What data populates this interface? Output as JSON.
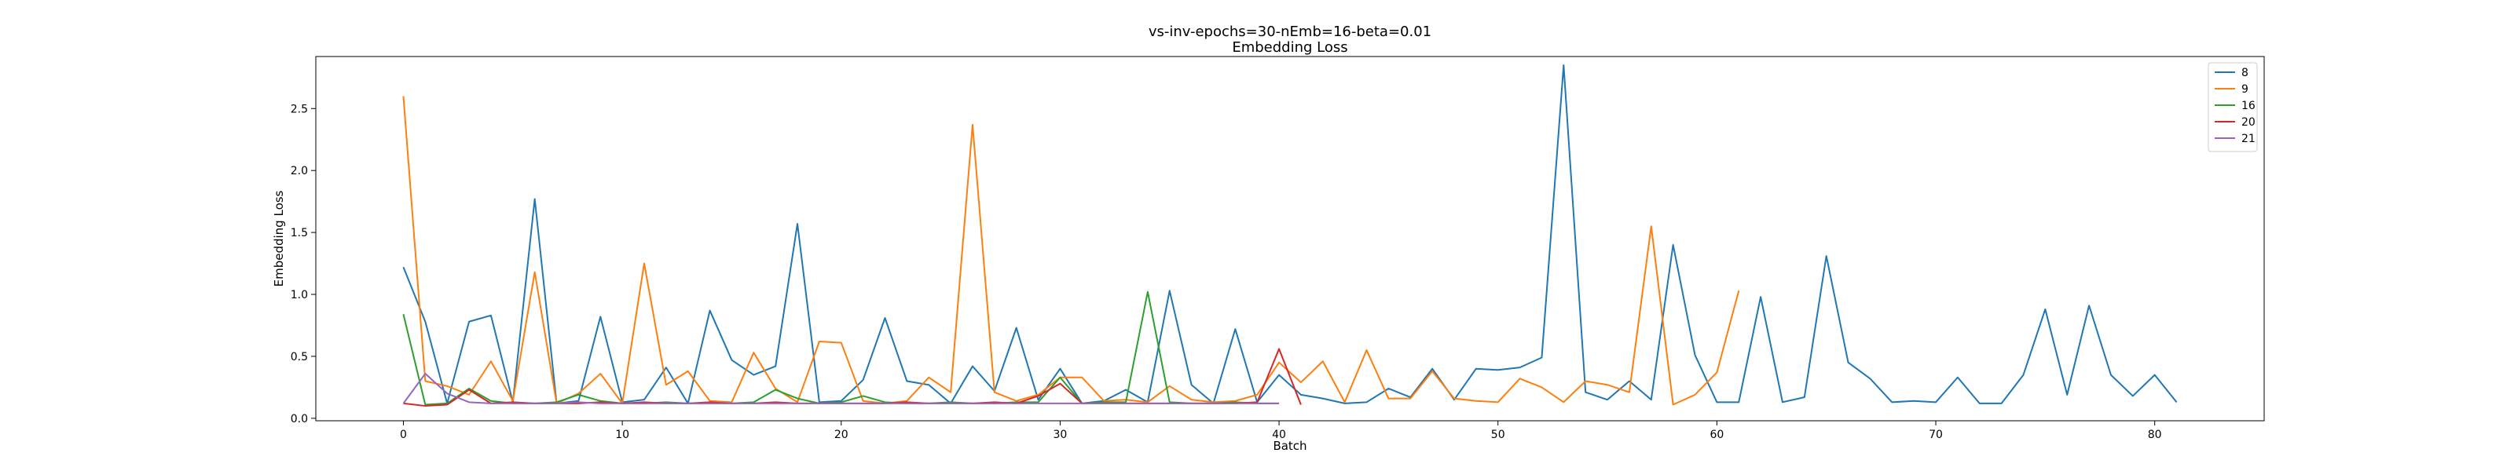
{
  "chart_data": {
    "type": "line",
    "title_lines": [
      "vs-inv-epochs=30-nEmb=16-beta=0.01",
      "Embedding Loss"
    ],
    "xlabel": "Batch",
    "ylabel": "Embedding Loss",
    "xlim": [
      -4,
      85
    ],
    "ylim": [
      -0.02,
      2.92
    ],
    "xticks": [
      0,
      10,
      20,
      30,
      40,
      50,
      60,
      70,
      80
    ],
    "yticks": [
      0.0,
      0.5,
      1.0,
      1.5,
      2.0,
      2.5
    ],
    "ytick_labels": [
      "0.0",
      "0.5",
      "1.0",
      "1.5",
      "2.0",
      "2.5"
    ],
    "grid": false,
    "legend_position": "top-right",
    "series": [
      {
        "name": "8",
        "color": "#1f77b4",
        "values": [
          1.22,
          0.78,
          0.12,
          0.78,
          0.83,
          0.13,
          1.77,
          0.12,
          0.14,
          0.82,
          0.13,
          0.15,
          0.41,
          0.12,
          0.87,
          0.47,
          0.35,
          0.42,
          1.57,
          0.13,
          0.14,
          0.31,
          0.81,
          0.3,
          0.27,
          0.12,
          0.42,
          0.22,
          0.73,
          0.15,
          0.4,
          0.12,
          0.14,
          0.23,
          0.13,
          1.03,
          0.27,
          0.12,
          0.72,
          0.13,
          0.35,
          0.19,
          0.16,
          0.12,
          0.13,
          0.24,
          0.17,
          0.4,
          0.15,
          0.4,
          0.39,
          0.41,
          0.49,
          2.85,
          0.21,
          0.15,
          0.3,
          0.15,
          1.4,
          0.51,
          0.13,
          0.13,
          0.98,
          0.13,
          0.17,
          1.31,
          0.45,
          0.32,
          0.13,
          0.14,
          0.13,
          0.33,
          0.12,
          0.12,
          0.35,
          0.88,
          0.19,
          0.91,
          0.35,
          0.18,
          0.35,
          0.13
        ]
      },
      {
        "name": "9",
        "color": "#ff7f0e",
        "values": [
          2.6,
          0.3,
          0.26,
          0.19,
          0.46,
          0.14,
          1.18,
          0.12,
          0.2,
          0.36,
          0.12,
          1.25,
          0.27,
          0.38,
          0.14,
          0.13,
          0.53,
          0.24,
          0.13,
          0.62,
          0.61,
          0.14,
          0.12,
          0.14,
          0.33,
          0.21,
          2.37,
          0.21,
          0.14,
          0.19,
          0.33,
          0.33,
          0.14,
          0.15,
          0.13,
          0.26,
          0.15,
          0.13,
          0.14,
          0.19,
          0.45,
          0.29,
          0.46,
          0.13,
          0.55,
          0.16,
          0.16,
          0.38,
          0.16,
          0.14,
          0.13,
          0.32,
          0.25,
          0.13,
          0.3,
          0.27,
          0.21,
          1.55,
          0.11,
          0.19,
          0.37,
          1.03
        ]
      },
      {
        "name": "16",
        "color": "#2ca02c",
        "values": [
          0.84,
          0.11,
          0.12,
          0.24,
          0.14,
          0.12,
          0.12,
          0.13,
          0.19,
          0.14,
          0.12,
          0.12,
          0.13,
          0.12,
          0.12,
          0.12,
          0.13,
          0.23,
          0.16,
          0.12,
          0.13,
          0.18,
          0.13,
          0.12,
          0.12,
          0.13,
          0.12,
          0.12,
          0.13,
          0.13,
          0.33,
          0.12,
          0.13,
          0.13,
          1.02,
          0.13,
          0.12,
          0.12,
          0.13,
          0.12,
          0.12
        ]
      },
      {
        "name": "20",
        "color": "#d62728",
        "values": [
          0.12,
          0.1,
          0.11,
          0.23,
          0.12,
          0.13,
          0.12,
          0.12,
          0.12,
          0.13,
          0.12,
          0.13,
          0.12,
          0.12,
          0.13,
          0.12,
          0.12,
          0.13,
          0.12,
          0.12,
          0.12,
          0.12,
          0.12,
          0.13,
          0.12,
          0.12,
          0.12,
          0.13,
          0.12,
          0.18,
          0.28,
          0.12,
          0.12,
          0.12,
          0.12,
          0.12,
          0.12,
          0.12,
          0.12,
          0.13,
          0.56,
          0.11
        ]
      },
      {
        "name": "21",
        "color": "#9467bd",
        "values": [
          0.12,
          0.36,
          0.2,
          0.13,
          0.12,
          0.12,
          0.12,
          0.12,
          0.13,
          0.12,
          0.12,
          0.12,
          0.12,
          0.12,
          0.12,
          0.12,
          0.12,
          0.12,
          0.12,
          0.12,
          0.12,
          0.12,
          0.12,
          0.12,
          0.12,
          0.12,
          0.12,
          0.12,
          0.12,
          0.12,
          0.12,
          0.12,
          0.12,
          0.12,
          0.12,
          0.12,
          0.12,
          0.12,
          0.12,
          0.12,
          0.12
        ]
      }
    ]
  }
}
